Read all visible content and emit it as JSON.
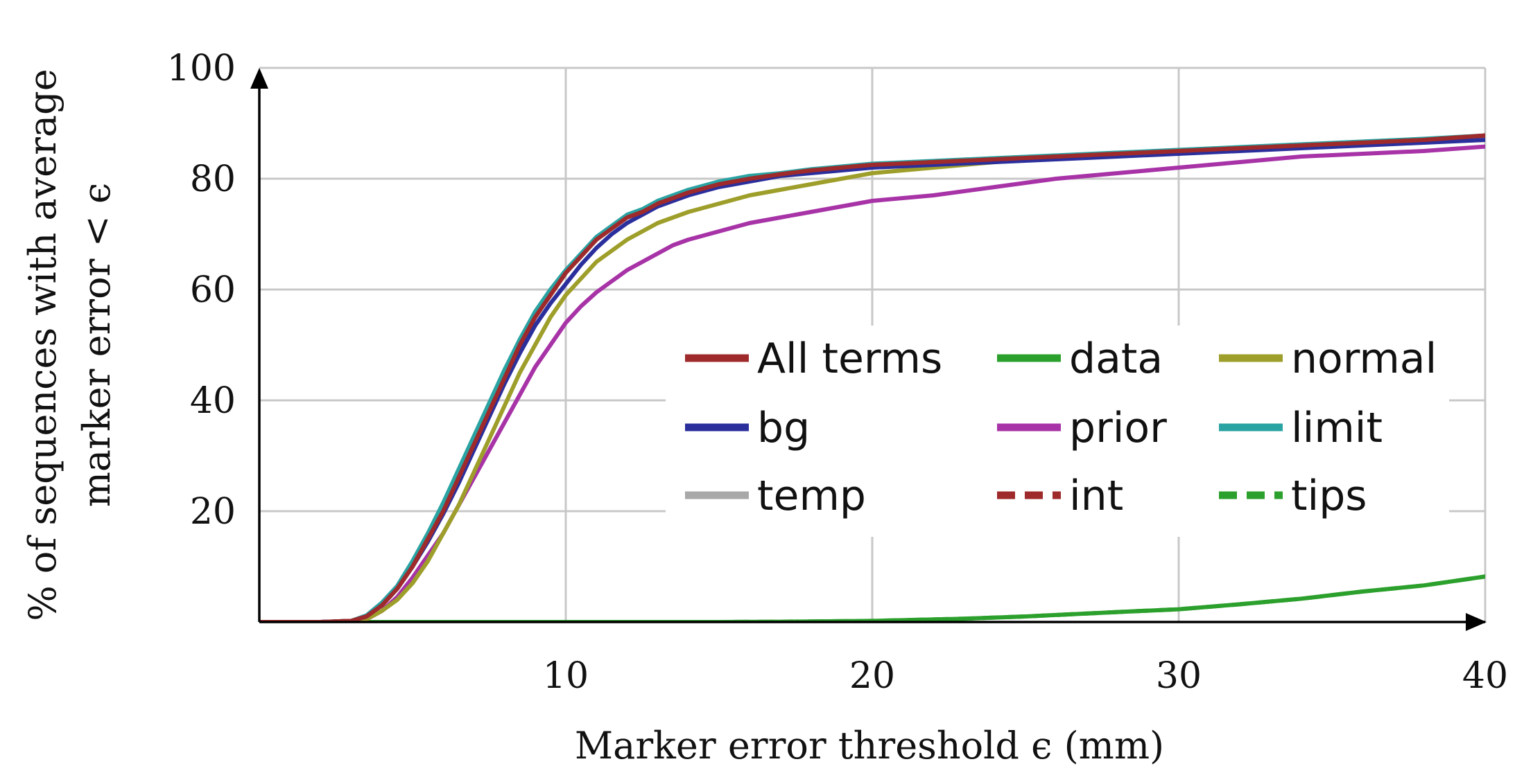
{
  "chart_data": {
    "type": "line",
    "title": "",
    "xlabel": "Marker error threshold ϵ (mm)",
    "ylabel_lines": [
      "% of sequences with average",
      "marker error < ϵ"
    ],
    "xlim": [
      0,
      40
    ],
    "ylim": [
      0,
      100
    ],
    "x_ticks": [
      10,
      20,
      30,
      40
    ],
    "y_ticks": [
      20,
      40,
      60,
      80,
      100
    ],
    "x_tick_labels": [
      "10",
      "20",
      "30",
      "40"
    ],
    "y_tick_labels": [
      "20",
      "40",
      "60",
      "80",
      "100"
    ],
    "grid": true,
    "legend_position": "center-right",
    "series": [
      {
        "name": "All terms",
        "color": "#9e2a2b",
        "dash": "solid",
        "x": [
          0,
          2,
          3,
          3.5,
          4,
          4.5,
          5,
          5.5,
          6,
          6.5,
          7,
          7.5,
          8,
          8.5,
          9,
          9.5,
          10,
          10.5,
          11,
          11.5,
          12,
          12.5,
          13,
          13.5,
          14,
          15,
          16,
          17,
          18,
          19,
          20,
          22,
          24,
          26,
          28,
          30,
          32,
          34,
          36,
          38,
          40
        ],
        "y": [
          0,
          0,
          0.2,
          1,
          3,
          6,
          10,
          15,
          20,
          26,
          32,
          38,
          44,
          50,
          55,
          59,
          63,
          66,
          69,
          71,
          73,
          74,
          75.5,
          76.5,
          77.5,
          79,
          80,
          80.8,
          81.5,
          82,
          82.5,
          83,
          83.5,
          84,
          84.5,
          85,
          85.5,
          86,
          86.5,
          87,
          87.8
        ]
      },
      {
        "name": "bg",
        "color": "#2b2f9c",
        "dash": "solid",
        "x": [
          0,
          2,
          3,
          3.5,
          4,
          4.5,
          5,
          5.5,
          6,
          6.5,
          7,
          7.5,
          8,
          8.5,
          9,
          9.5,
          10,
          10.5,
          11,
          11.5,
          12,
          12.5,
          13,
          13.5,
          14,
          15,
          16,
          17,
          18,
          19,
          20,
          22,
          24,
          26,
          28,
          30,
          32,
          34,
          36,
          38,
          40
        ],
        "y": [
          0,
          0,
          0.2,
          1,
          3,
          6,
          10,
          14.5,
          19.5,
          25,
          31,
          37,
          43,
          48.5,
          53.5,
          57.5,
          61,
          64.5,
          67.5,
          70,
          72,
          73.5,
          75,
          76,
          77,
          78.5,
          79.5,
          80.5,
          81,
          81.5,
          82,
          82.5,
          83,
          83.5,
          84,
          84.5,
          85,
          85.5,
          86,
          86.5,
          87
        ]
      },
      {
        "name": "temp",
        "color": "#a8a8a8",
        "dash": "solid",
        "x": [
          0,
          2,
          3,
          3.5,
          4,
          4.5,
          5,
          5.5,
          6,
          6.5,
          7,
          7.5,
          8,
          8.5,
          9,
          9.5,
          10,
          10.5,
          11,
          11.5,
          12,
          12.5,
          13,
          13.5,
          14,
          15,
          16,
          17,
          18,
          19,
          20,
          22,
          24,
          26,
          28,
          30,
          32,
          34,
          36,
          38,
          40
        ],
        "y": [
          0,
          0,
          0.2,
          1,
          3,
          6,
          10,
          15,
          20,
          26,
          32,
          38,
          44,
          50,
          55,
          59,
          63,
          66,
          69,
          71,
          73,
          74,
          75.5,
          76.5,
          77.5,
          79,
          80,
          80.8,
          81.5,
          82,
          82.5,
          83,
          83.5,
          84,
          84.5,
          85,
          85.5,
          86,
          86.5,
          87,
          87.6
        ]
      },
      {
        "name": "data",
        "color": "#2ca02c",
        "dash": "solid",
        "x": [
          0,
          10,
          15,
          17,
          20,
          23,
          25,
          28,
          30,
          32,
          34,
          36,
          38,
          40
        ],
        "y": [
          0,
          0,
          0,
          0.05,
          0.2,
          0.6,
          1.0,
          1.8,
          2.3,
          3.2,
          4.2,
          5.5,
          6.6,
          8.2
        ]
      },
      {
        "name": "prior",
        "color": "#a733a7",
        "dash": "solid",
        "x": [
          0,
          2,
          3,
          3.5,
          4,
          4.5,
          5,
          5.5,
          6,
          6.5,
          7,
          7.5,
          8,
          8.5,
          9,
          9.5,
          10,
          10.5,
          11,
          11.5,
          12,
          12.5,
          13,
          13.5,
          14,
          15,
          16,
          17,
          18,
          19,
          20,
          22,
          24,
          26,
          28,
          30,
          32,
          34,
          36,
          38,
          40
        ],
        "y": [
          0,
          0,
          0,
          0.5,
          2,
          4.5,
          8,
          12,
          16,
          21,
          26,
          31,
          36,
          41,
          46,
          50,
          54,
          57,
          59.5,
          61.5,
          63.5,
          65,
          66.5,
          68,
          69,
          70.5,
          72,
          73,
          74,
          75,
          76,
          77,
          78.5,
          80,
          81,
          82,
          83,
          84,
          84.5,
          85,
          85.8
        ]
      },
      {
        "name": "int",
        "color": "#9e2a2b",
        "dash": "dashed",
        "x": [
          0,
          2,
          3,
          3.5,
          4,
          4.5,
          5,
          5.5,
          6,
          6.5,
          7,
          7.5,
          8,
          8.5,
          9,
          9.5,
          10,
          10.5,
          11,
          11.5,
          12,
          12.5,
          13,
          13.5,
          14,
          15,
          16,
          17,
          18,
          19,
          20,
          22,
          24,
          26,
          28,
          30,
          32,
          34,
          36,
          38,
          40
        ],
        "y": [
          0,
          0,
          0.2,
          1,
          3,
          6,
          10,
          15,
          20,
          26,
          32,
          38,
          44,
          50,
          55,
          59,
          63,
          66,
          69,
          71,
          73,
          74,
          75.5,
          76.5,
          77.5,
          79,
          80,
          80.8,
          81.5,
          82,
          82.5,
          83,
          83.5,
          84,
          84.5,
          85,
          85.5,
          86,
          86.5,
          87,
          87.8
        ]
      },
      {
        "name": "normal",
        "color": "#9e9e2a",
        "dash": "solid",
        "x": [
          0,
          2,
          3,
          3.5,
          4,
          4.5,
          5,
          5.5,
          6,
          6.5,
          7,
          7.5,
          8,
          8.5,
          9,
          9.5,
          10,
          10.5,
          11,
          11.5,
          12,
          12.5,
          13,
          13.5,
          14,
          15,
          16,
          17,
          18,
          19,
          20,
          22,
          24,
          26,
          28,
          30,
          32,
          34,
          36,
          38,
          40
        ],
        "y": [
          0,
          0,
          0,
          0.5,
          2,
          4,
          7,
          11,
          16,
          21,
          27,
          33,
          39,
          45,
          50,
          55,
          59,
          62,
          65,
          67,
          69,
          70.5,
          72,
          73,
          74,
          75.5,
          77,
          78,
          79,
          80,
          81,
          82,
          83,
          84,
          84.5,
          85,
          85.5,
          86,
          86.3,
          86.6,
          87
        ]
      },
      {
        "name": "limit",
        "color": "#2aa3a3",
        "dash": "solid",
        "x": [
          0,
          2,
          3,
          3.5,
          4,
          4.5,
          5,
          5.5,
          6,
          6.5,
          7,
          7.5,
          8,
          8.5,
          9,
          9.5,
          10,
          10.5,
          11,
          11.5,
          12,
          12.5,
          13,
          13.5,
          14,
          15,
          16,
          17,
          18,
          19,
          20,
          22,
          24,
          26,
          28,
          30,
          32,
          34,
          36,
          38,
          40
        ],
        "y": [
          0,
          0,
          0.2,
          1.2,
          3.5,
          6.5,
          11,
          16,
          21.5,
          27.5,
          33.5,
          39.5,
          45.5,
          51,
          56,
          60,
          63.5,
          66.5,
          69.5,
          71.5,
          73.5,
          74.5,
          76,
          77,
          78,
          79.5,
          80.5,
          81,
          81.7,
          82.2,
          82.7,
          83.2,
          83.7,
          84.2,
          84.7,
          85.2,
          85.7,
          86.2,
          86.7,
          87.2,
          87.8
        ]
      },
      {
        "name": "tips",
        "color": "#2ca02c",
        "dash": "dashed",
        "x": [
          0,
          10,
          15,
          17,
          20,
          23,
          25,
          28,
          30,
          32,
          34,
          36,
          38,
          40
        ],
        "y": [
          0,
          0,
          0,
          0.05,
          0.2,
          0.6,
          1.0,
          1.8,
          2.3,
          3.2,
          4.2,
          5.5,
          6.6,
          8.2
        ]
      }
    ],
    "legend_order": [
      "All terms",
      "data",
      "normal",
      "bg",
      "prior",
      "limit",
      "temp",
      "int",
      "tips"
    ]
  }
}
